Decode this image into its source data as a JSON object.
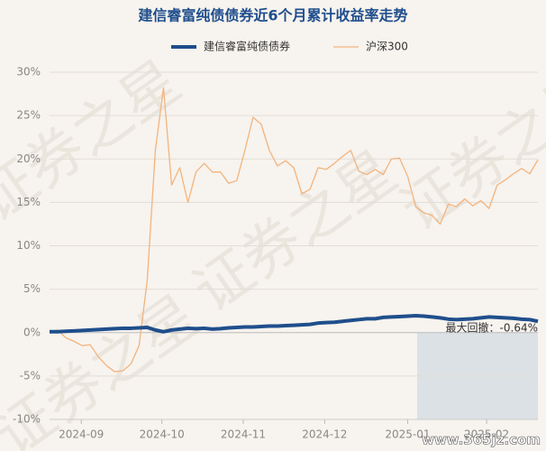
{
  "chart_data": {
    "type": "line",
    "title": "建信睿富纯债债券近6个月累计收益率走势",
    "annotation": "最大回撤：-0.64%",
    "watermark": "证券之星",
    "watermark_url": "www.365jz.com",
    "xlim": [
      0,
      60
    ],
    "xticks": [
      {
        "value": 3.9,
        "label": "2024-09"
      },
      {
        "value": 13.8,
        "label": "2024-10"
      },
      {
        "value": 23.8,
        "label": "2024-11"
      },
      {
        "value": 33.8,
        "label": "2024-12"
      },
      {
        "value": 44,
        "label": "2025-01"
      },
      {
        "value": 53.7,
        "label": "2025-02"
      }
    ],
    "ylim": [
      -10,
      30
    ],
    "yticks": [
      {
        "value": 30,
        "label": "30%"
      },
      {
        "value": 25,
        "label": "25%"
      },
      {
        "value": 20,
        "label": "20%"
      },
      {
        "value": 15,
        "label": "15%"
      },
      {
        "value": 10,
        "label": "10%"
      },
      {
        "value": 5,
        "label": "5%"
      },
      {
        "value": 0,
        "label": "0%"
      },
      {
        "value": -5,
        "label": "-5%"
      },
      {
        "value": -10,
        "label": "-10%"
      }
    ],
    "grid": true,
    "series": [
      {
        "name": "建信睿富纯债债券",
        "color": "#1f4e8c",
        "width": 4,
        "values": [
          0.1,
          0.1,
          0.15,
          0.2,
          0.25,
          0.3,
          0.35,
          0.4,
          0.45,
          0.5,
          0.5,
          0.55,
          0.6,
          0.3,
          0.1,
          0.3,
          0.4,
          0.5,
          0.45,
          0.5,
          0.4,
          0.45,
          0.55,
          0.6,
          0.65,
          0.65,
          0.7,
          0.75,
          0.75,
          0.8,
          0.85,
          0.9,
          0.95,
          1.1,
          1.15,
          1.2,
          1.3,
          1.4,
          1.5,
          1.6,
          1.6,
          1.75,
          1.8,
          1.85,
          1.9,
          1.95,
          1.9,
          1.8,
          1.7,
          1.55,
          1.5,
          1.55,
          1.6,
          1.7,
          1.8,
          1.75,
          1.7,
          1.65,
          1.55,
          1.5,
          1.3
        ]
      },
      {
        "name": "沪深300",
        "color": "#f2b47e",
        "width": 1.3,
        "values": [
          0,
          0.3,
          -0.6,
          -1.0,
          -1.5,
          -1.4,
          -2.8,
          -3.8,
          -4.5,
          -4.4,
          -3.6,
          -1.5,
          6,
          21,
          28.2,
          17,
          19,
          15,
          18.5,
          19.5,
          18.5,
          18.5,
          17.2,
          17.5,
          21,
          24.8,
          24,
          21,
          19.2,
          19.8,
          19,
          16,
          16.5,
          19,
          18.8,
          19.5,
          20.3,
          21,
          18.6,
          18.2,
          18.8,
          18.2,
          20,
          20.1,
          18,
          14.5,
          13.8,
          13.5,
          12.5,
          14.8,
          14.5,
          15.4,
          14.6,
          15.2,
          14.3,
          17,
          17.6,
          18.3,
          18.9,
          18.3,
          19.9
        ]
      }
    ]
  }
}
